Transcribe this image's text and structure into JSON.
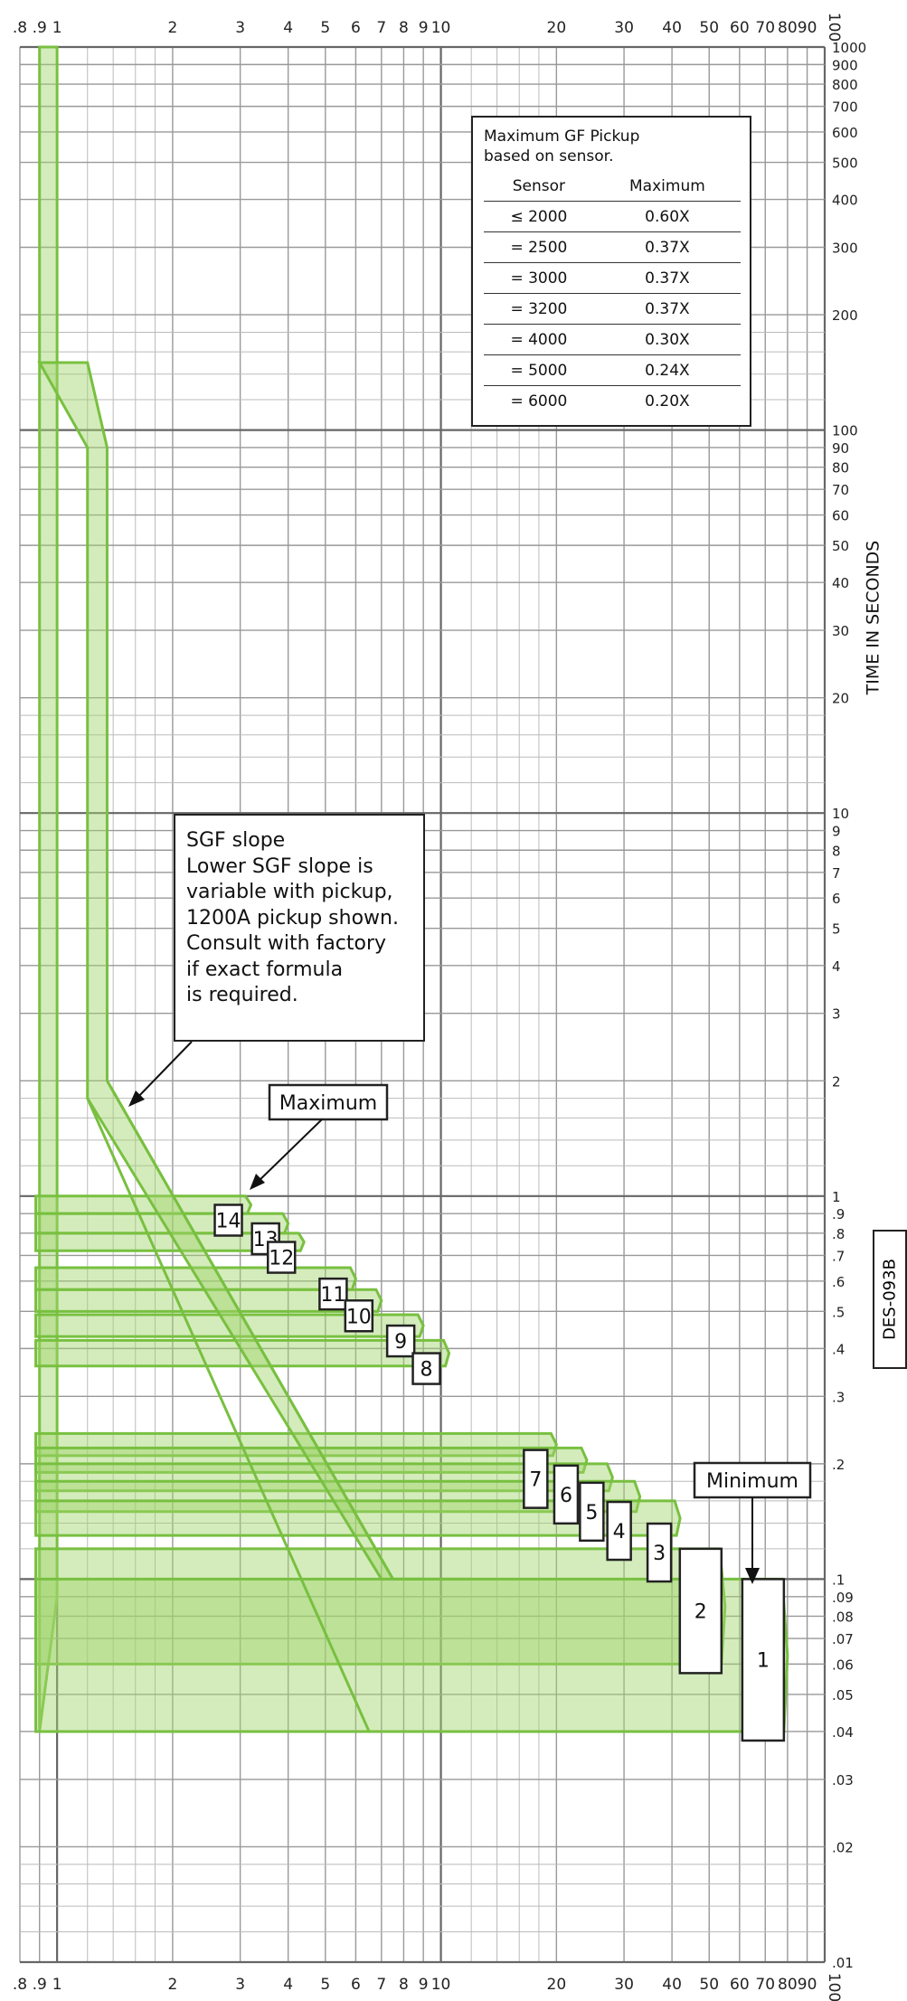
{
  "chart_data": {
    "type": "area",
    "x_scale": "log",
    "y_scale": "log",
    "xlim": [
      0.8,
      100
    ],
    "ylim": [
      0.01,
      1000
    ],
    "x_tick_labels": [
      ".8",
      ".9",
      "1",
      "2",
      "3",
      "4",
      "5",
      "6",
      "7",
      "8",
      "9",
      "10",
      "20",
      "30",
      "40",
      "50",
      "60",
      "70",
      "80",
      "90",
      "100"
    ],
    "x_tick_values": [
      0.8,
      0.9,
      1,
      2,
      3,
      4,
      5,
      6,
      7,
      8,
      9,
      10,
      20,
      30,
      40,
      50,
      60,
      70,
      80,
      90,
      100
    ],
    "y_tick_labels": [
      ".01",
      ".02",
      ".03",
      ".04",
      ".05",
      ".06",
      ".07",
      ".08",
      ".09",
      ".1",
      ".2",
      ".3",
      ".4",
      ".5",
      ".6",
      ".7",
      ".8",
      ".9",
      "1",
      "2",
      "3",
      "4",
      "5",
      "6",
      "7",
      "8",
      "9",
      "10",
      "20",
      "30",
      "40",
      "50",
      "60",
      "70",
      "80",
      "90",
      "100",
      "200",
      "300",
      "400",
      "500",
      "600",
      "700",
      "800",
      "900",
      "1000"
    ],
    "y_tick_values": [
      0.01,
      0.02,
      0.03,
      0.04,
      0.05,
      0.06,
      0.07,
      0.08,
      0.09,
      0.1,
      0.2,
      0.3,
      0.4,
      0.5,
      0.6,
      0.7,
      0.8,
      0.9,
      1,
      2,
      3,
      4,
      5,
      6,
      7,
      8,
      9,
      10,
      20,
      30,
      40,
      50,
      60,
      70,
      80,
      90,
      100,
      200,
      300,
      400,
      500,
      600,
      700,
      800,
      900,
      1000
    ],
    "ylabel": "TIME IN SECONDS",
    "grid": true,
    "series": [
      {
        "label": "14",
        "x_end": 3.2,
        "t_max": 1.0,
        "t_min": 0.9
      },
      {
        "label": "13",
        "x_end": 4.0,
        "t_max": 0.9,
        "t_min": 0.8
      },
      {
        "label": "12",
        "x_end": 4.4,
        "t_max": 0.8,
        "t_min": 0.72
      },
      {
        "label": "11",
        "x_end": 6.0,
        "t_max": 0.65,
        "t_min": 0.57
      },
      {
        "label": "10",
        "x_end": 7.0,
        "t_max": 0.57,
        "t_min": 0.5
      },
      {
        "label": "9",
        "x_end": 9.0,
        "t_max": 0.49,
        "t_min": 0.43
      },
      {
        "label": "8",
        "x_end": 10.5,
        "t_max": 0.42,
        "t_min": 0.36
      },
      {
        "label": "7",
        "x_end": 20.0,
        "t_max": 0.24,
        "t_min": 0.21
      },
      {
        "label": "6",
        "x_end": 24.0,
        "t_max": 0.22,
        "t_min": 0.19
      },
      {
        "label": "5",
        "x_end": 28.0,
        "t_max": 0.2,
        "t_min": 0.17
      },
      {
        "label": "4",
        "x_end": 33.0,
        "t_max": 0.18,
        "t_min": 0.15
      },
      {
        "label": "3",
        "x_end": 42.0,
        "t_max": 0.16,
        "t_min": 0.13
      },
      {
        "label": "2",
        "x_end": 55.0,
        "t_max": 0.12,
        "t_min": 0.06
      },
      {
        "label": "1",
        "x_end": 80.0,
        "t_max": 0.1,
        "t_min": 0.04
      }
    ],
    "colors": {
      "band_fill": "#9fd46a",
      "band_stroke": "#78c040",
      "grid": "#999999"
    },
    "annotations": {
      "maximum_label": "Maximum",
      "minimum_label": "Minimum"
    }
  },
  "gf_table": {
    "title_line1": "Maximum GF Pickup",
    "title_line2": "based on sensor.",
    "headers": [
      "Sensor",
      "Maximum"
    ],
    "rows": [
      [
        "≤ 2000",
        "0.60X"
      ],
      [
        "= 2500",
        "0.37X"
      ],
      [
        "= 3000",
        "0.37X"
      ],
      [
        "= 3200",
        "0.37X"
      ],
      [
        "= 4000",
        "0.30X"
      ],
      [
        "= 5000",
        "0.24X"
      ],
      [
        "= 6000",
        "0.20X"
      ]
    ]
  },
  "slope_note": {
    "lines": [
      "SGF slope",
      "Lower SGF slope is",
      "variable with pickup,",
      "1200A pickup shown.",
      "Consult with factory",
      "if exact formula",
      "is required."
    ]
  },
  "doc_id": "DES-093B"
}
